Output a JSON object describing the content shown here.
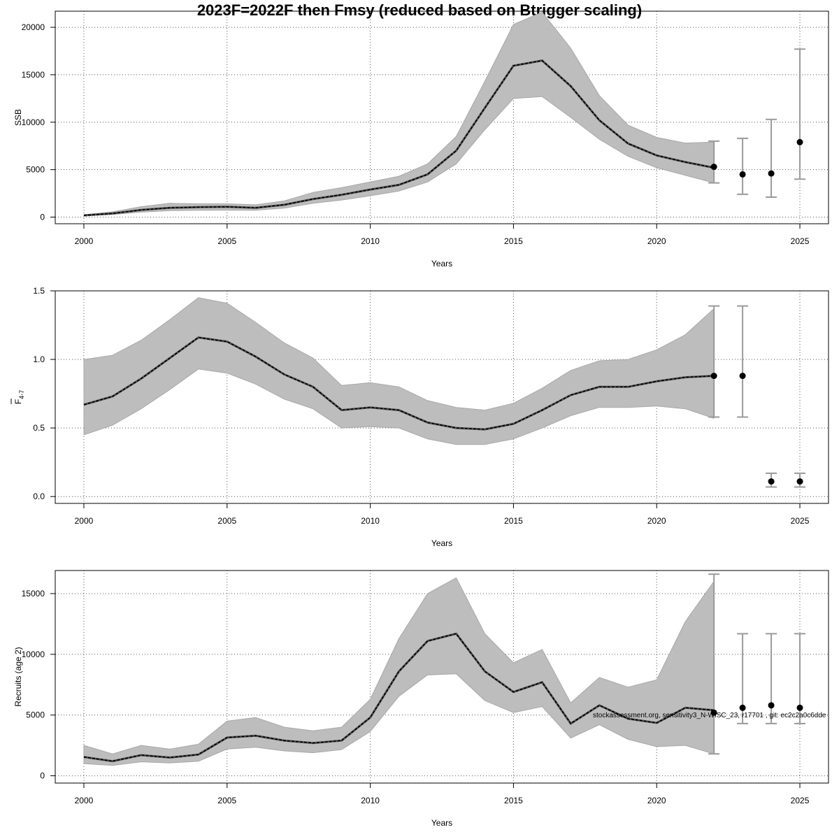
{
  "title": "2023F=2022F then Fmsy (reduced based on Btrigger scaling)",
  "footnote": "stockassessment.org, sensitivity3_N-WISC_23, r17701 , git: ec2c2a0c6dde",
  "chart_data": [
    {
      "type": "line",
      "name": "ssb",
      "ylabel": "SSB",
      "ylabel_sub": "",
      "xlabel": "Years",
      "xlim": [
        1999.0,
        2026.0
      ],
      "ylim": [
        -700,
        21700
      ],
      "x_ticks": [
        2000,
        2005,
        2010,
        2015,
        2020,
        2025
      ],
      "y_ticks": [
        0,
        5000,
        10000,
        15000,
        20000
      ],
      "grid": true,
      "x": [
        2000,
        2001,
        2002,
        2003,
        2004,
        2005,
        2006,
        2007,
        2008,
        2009,
        2010,
        2011,
        2012,
        2013,
        2014,
        2015,
        2016,
        2017,
        2018,
        2019,
        2020,
        2021,
        2022
      ],
      "estimate": [
        180,
        380,
        750,
        980,
        1050,
        1080,
        980,
        1300,
        1900,
        2350,
        2900,
        3400,
        4500,
        7000,
        11500,
        15950,
        16500,
        13800,
        10200,
        7750,
        6500,
        5800,
        5200
      ],
      "lower": [
        130,
        270,
        520,
        680,
        720,
        730,
        720,
        950,
        1450,
        1800,
        2250,
        2750,
        3700,
        5600,
        9200,
        12500,
        12700,
        10500,
        8200,
        6400,
        5200,
        4400,
        3600
      ],
      "upper": [
        250,
        550,
        1100,
        1450,
        1400,
        1400,
        1300,
        1700,
        2600,
        3100,
        3700,
        4300,
        5600,
        8500,
        14300,
        20300,
        21600,
        17800,
        12800,
        9700,
        8400,
        7800,
        7900
      ],
      "projection": [
        {
          "year": 2022,
          "value": 5300,
          "low": 3600,
          "high": 8000
        },
        {
          "year": 2023,
          "value": 4500,
          "low": 2400,
          "high": 8300
        },
        {
          "year": 2024,
          "value": 4600,
          "low": 2100,
          "high": 10300
        },
        {
          "year": 2025,
          "value": 7900,
          "low": 4000,
          "high": 17700
        }
      ]
    },
    {
      "type": "line",
      "name": "fbar",
      "ylabel": "F",
      "ylabel_sub": "4-7",
      "xlabel": "Years",
      "xlim": [
        1999.0,
        2026.0
      ],
      "ylim": [
        -0.05,
        1.5
      ],
      "x_ticks": [
        2000,
        2005,
        2010,
        2015,
        2020,
        2025
      ],
      "y_ticks": [
        0.0,
        0.5,
        1.0,
        1.5
      ],
      "y_tick_labels": [
        "0.0",
        "0.5",
        "1.0",
        "1.5"
      ],
      "grid": true,
      "x": [
        2000,
        2001,
        2002,
        2003,
        2004,
        2005,
        2006,
        2007,
        2008,
        2009,
        2010,
        2011,
        2012,
        2013,
        2014,
        2015,
        2016,
        2017,
        2018,
        2019,
        2020,
        2021,
        2022
      ],
      "estimate": [
        0.67,
        0.73,
        0.86,
        1.01,
        1.16,
        1.13,
        1.02,
        0.89,
        0.8,
        0.63,
        0.65,
        0.63,
        0.54,
        0.5,
        0.49,
        0.53,
        0.63,
        0.74,
        0.8,
        0.8,
        0.84,
        0.87,
        0.88
      ],
      "lower": [
        0.45,
        0.52,
        0.64,
        0.78,
        0.93,
        0.9,
        0.82,
        0.71,
        0.64,
        0.5,
        0.51,
        0.5,
        0.42,
        0.38,
        0.38,
        0.42,
        0.5,
        0.59,
        0.65,
        0.65,
        0.66,
        0.64,
        0.57
      ],
      "upper": [
        1.0,
        1.03,
        1.14,
        1.29,
        1.45,
        1.41,
        1.27,
        1.12,
        1.01,
        0.81,
        0.83,
        0.8,
        0.7,
        0.65,
        0.63,
        0.68,
        0.79,
        0.92,
        0.99,
        1.0,
        1.07,
        1.18,
        1.37
      ],
      "projection": [
        {
          "year": 2022,
          "value": 0.88,
          "low": 0.58,
          "high": 1.39
        },
        {
          "year": 2023,
          "value": 0.88,
          "low": 0.58,
          "high": 1.39
        },
        {
          "year": 2024,
          "value": 0.11,
          "low": 0.07,
          "high": 0.17
        },
        {
          "year": 2025,
          "value": 0.11,
          "low": 0.07,
          "high": 0.17
        }
      ]
    },
    {
      "type": "line",
      "name": "recruits",
      "ylabel": "Recruits (age 2)",
      "ylabel_sub": "",
      "xlabel": "Years",
      "xlim": [
        1999.0,
        2026.0
      ],
      "ylim": [
        -600,
        16900
      ],
      "x_ticks": [
        2000,
        2005,
        2010,
        2015,
        2020,
        2025
      ],
      "y_ticks": [
        0,
        5000,
        10000,
        15000
      ],
      "grid": true,
      "x": [
        2000,
        2001,
        2002,
        2003,
        2004,
        2005,
        2006,
        2007,
        2008,
        2009,
        2010,
        2011,
        2012,
        2013,
        2014,
        2015,
        2016,
        2017,
        2018,
        2019,
        2020,
        2021,
        2022
      ],
      "estimate": [
        1550,
        1200,
        1700,
        1500,
        1750,
        3150,
        3300,
        2900,
        2700,
        2900,
        4800,
        8600,
        11100,
        11700,
        8600,
        6900,
        7700,
        4300,
        5800,
        4700,
        4350,
        5600,
        5400
      ],
      "lower": [
        1000,
        850,
        1150,
        1050,
        1200,
        2200,
        2350,
        2050,
        1900,
        2150,
        3650,
        6550,
        8300,
        8400,
        6200,
        5200,
        5700,
        3100,
        4200,
        3000,
        2400,
        2500,
        1800
      ],
      "upper": [
        2500,
        1800,
        2500,
        2200,
        2600,
        4500,
        4800,
        4000,
        3700,
        4000,
        6300,
        11300,
        15000,
        16300,
        11700,
        9300,
        10400,
        6000,
        8100,
        7300,
        7900,
        12700,
        16000
      ],
      "projection": [
        {
          "year": 2022,
          "value": 5200,
          "low": 1800,
          "high": 16600
        },
        {
          "year": 2023,
          "value": 5600,
          "low": 4300,
          "high": 11700
        },
        {
          "year": 2024,
          "value": 5800,
          "low": 4300,
          "high": 11700
        },
        {
          "year": 2025,
          "value": 5600,
          "low": 4300,
          "high": 11700
        }
      ]
    }
  ]
}
